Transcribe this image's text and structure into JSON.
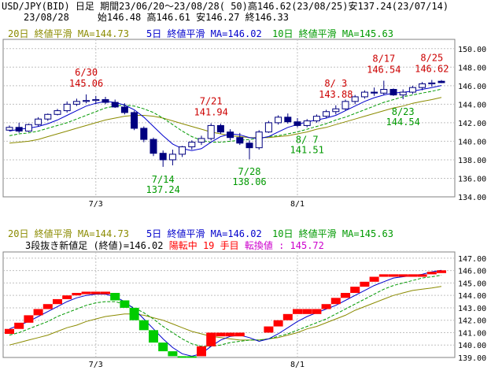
{
  "header": {
    "line1": "USD/JPY(BID) 日足 期間23/06/20～23/08/28( 50)高146.62(23/08/25)安137.24(23/07/14)",
    "line2": "23/08/28     始146.48 高146.61 安146.27 終146.33"
  },
  "colors": {
    "ma20": "#8b8b00",
    "ma5": "#0000cc",
    "ma10": "#009900",
    "up_candle": "#ffffff",
    "down_candle": "#000080",
    "candle_outline": "#000080",
    "break_up": "#ff0000",
    "break_down": "#00cc00",
    "annot_high": "#cc0000",
    "annot_low": "#009900",
    "grid": "#c0c0c0",
    "transition_value": "#cc00cc"
  },
  "chart_data": [
    {
      "type": "candlestick",
      "legend": {
        "ma20": "20日 終値平滑 MA=144.73",
        "ma5": "5日 終値平滑 MA=146.02",
        "ma10": "10日 終値平滑 MA=145.63"
      },
      "ylim": [
        134,
        151
      ],
      "yticks": [
        "150.00",
        "148.00",
        "146.00",
        "144.00",
        "142.00",
        "140.00",
        "138.00",
        "136.00",
        "134.00"
      ],
      "xtick_labels": [
        {
          "index": 9,
          "label": "7/3"
        },
        {
          "index": 30,
          "label": "8/1"
        }
      ],
      "candles": [
        [
          141.2,
          141.7,
          141.1,
          141.5
        ],
        [
          141.5,
          142.0,
          140.9,
          141.1
        ],
        [
          141.1,
          141.9,
          141.0,
          141.8
        ],
        [
          141.8,
          142.6,
          141.6,
          142.4
        ],
        [
          142.4,
          143.0,
          142.2,
          142.9
        ],
        [
          142.9,
          143.5,
          142.8,
          143.3
        ],
        [
          143.3,
          144.3,
          143.1,
          144.0
        ],
        [
          144.0,
          144.6,
          143.8,
          144.3
        ],
        [
          144.3,
          145.06,
          144.1,
          144.4
        ],
        [
          144.4,
          144.9,
          144.0,
          144.5
        ],
        [
          144.5,
          144.8,
          144.0,
          144.2
        ],
        [
          144.2,
          144.5,
          143.6,
          143.7
        ],
        [
          143.7,
          144.1,
          142.9,
          143.1
        ],
        [
          143.1,
          143.3,
          141.2,
          141.4
        ],
        [
          141.4,
          141.6,
          139.9,
          140.2
        ],
        [
          140.2,
          140.4,
          138.4,
          138.7
        ],
        [
          138.7,
          139.0,
          137.24,
          138.0
        ],
        [
          138.0,
          139.1,
          137.4,
          138.6
        ],
        [
          138.6,
          139.5,
          138.3,
          139.4
        ],
        [
          139.4,
          140.1,
          139.1,
          139.9
        ],
        [
          139.9,
          140.6,
          139.6,
          140.3
        ],
        [
          140.3,
          141.94,
          140.1,
          141.7
        ],
        [
          141.7,
          141.9,
          140.8,
          141.0
        ],
        [
          141.0,
          141.3,
          140.1,
          140.4
        ],
        [
          140.4,
          140.9,
          139.6,
          139.8
        ],
        [
          139.8,
          140.1,
          138.06,
          139.3
        ],
        [
          139.3,
          141.2,
          139.1,
          141.0
        ],
        [
          141.0,
          142.2,
          140.9,
          142.0
        ],
        [
          142.0,
          142.8,
          141.8,
          142.6
        ],
        [
          142.6,
          143.0,
          141.9,
          142.1
        ],
        [
          142.1,
          142.5,
          141.5,
          141.7
        ],
        [
          141.7,
          142.4,
          141.51,
          142.2
        ],
        [
          142.2,
          142.9,
          142.0,
          142.7
        ],
        [
          142.7,
          143.4,
          142.5,
          143.2
        ],
        [
          143.2,
          143.88,
          142.9,
          143.5
        ],
        [
          143.5,
          144.5,
          143.3,
          144.3
        ],
        [
          144.3,
          145.0,
          144.0,
          144.8
        ],
        [
          144.8,
          145.5,
          144.6,
          145.3
        ],
        [
          145.3,
          145.8,
          144.9,
          145.2
        ],
        [
          145.2,
          146.54,
          145.0,
          145.6
        ],
        [
          145.6,
          145.7,
          144.9,
          145.0
        ],
        [
          145.0,
          145.6,
          144.54,
          145.3
        ],
        [
          145.3,
          146.0,
          145.1,
          145.8
        ],
        [
          145.8,
          146.4,
          145.5,
          146.2
        ],
        [
          146.2,
          146.62,
          145.9,
          146.3
        ],
        [
          146.48,
          146.61,
          146.27,
          146.33
        ]
      ],
      "ma5": [
        141.1,
        141.3,
        141.4,
        141.6,
        141.9,
        142.3,
        142.8,
        143.3,
        143.8,
        144.1,
        144.3,
        144.2,
        143.9,
        143.4,
        142.6,
        141.6,
        140.6,
        139.7,
        139.2,
        139.0,
        139.2,
        139.9,
        140.5,
        140.8,
        140.7,
        140.4,
        140.3,
        140.5,
        141.0,
        141.5,
        141.8,
        142.1,
        142.3,
        142.5,
        142.8,
        143.3,
        143.8,
        144.3,
        144.7,
        145.0,
        145.2,
        145.3,
        145.4,
        145.6,
        145.8,
        146.02
      ],
      "ma10": [
        140.6,
        140.8,
        140.9,
        141.1,
        141.4,
        141.7,
        142.0,
        142.4,
        142.8,
        143.2,
        143.6,
        143.8,
        143.9,
        143.8,
        143.5,
        143.1,
        142.5,
        141.8,
        141.1,
        140.5,
        140.1,
        139.9,
        139.9,
        140.0,
        140.1,
        140.2,
        140.3,
        140.5,
        140.6,
        140.8,
        141.0,
        141.3,
        141.6,
        141.9,
        142.3,
        142.6,
        143.0,
        143.4,
        143.8,
        144.2,
        144.5,
        144.8,
        145.0,
        145.2,
        145.4,
        145.63
      ],
      "ma20": [
        139.8,
        139.9,
        140.0,
        140.2,
        140.5,
        140.8,
        141.1,
        141.4,
        141.7,
        142.0,
        142.3,
        142.5,
        142.7,
        142.8,
        142.8,
        142.7,
        142.5,
        142.2,
        141.9,
        141.6,
        141.3,
        141.0,
        140.8,
        140.6,
        140.5,
        140.4,
        140.4,
        140.4,
        140.5,
        140.6,
        140.8,
        141.0,
        141.3,
        141.5,
        141.8,
        142.1,
        142.4,
        142.7,
        143.0,
        143.3,
        143.6,
        143.8,
        144.1,
        144.3,
        144.5,
        144.73
      ],
      "annotations": [
        {
          "index": 8,
          "date": "6/30",
          "value": "145.06",
          "kind": "high"
        },
        {
          "index": 21,
          "date": "7/21",
          "value": "141.94",
          "kind": "high"
        },
        {
          "index": 34,
          "date": "8/ 3",
          "value": "143.88",
          "kind": "high"
        },
        {
          "index": 39,
          "date": "8/17",
          "value": "146.54",
          "kind": "high"
        },
        {
          "index": 44,
          "date": "8/25",
          "value": "146.62",
          "kind": "high"
        },
        {
          "index": 16,
          "date": "7/14",
          "value": "137.24",
          "kind": "low"
        },
        {
          "index": 25,
          "date": "7/28",
          "value": "138.06",
          "kind": "low"
        },
        {
          "index": 31,
          "date": "8/ 7",
          "value": "141.51",
          "kind": "low"
        },
        {
          "index": 41,
          "date": "8/23",
          "value": "144.54",
          "kind": "low"
        }
      ]
    },
    {
      "type": "three-line-break",
      "legend": {
        "ma20": "20日 終値平滑 MA=144.73",
        "ma5": "5日 終値平滑 MA=146.02",
        "ma10": "10日 終値平滑 MA=145.63"
      },
      "info_prefix": "3段抜き新値足 (終値)=146.02",
      "info_status": "陽転中",
      "info_count": "19 手目",
      "info_transition": "転換値 : 145.72",
      "ylim": [
        139,
        147.5
      ],
      "yticks": [
        "147.00",
        "146.00",
        "145.00",
        "144.00",
        "143.00",
        "142.00",
        "141.00",
        "140.00",
        "139.00"
      ],
      "xtick_labels": [
        {
          "index": 9,
          "label": "7/3"
        },
        {
          "index": 30,
          "label": "8/1"
        }
      ],
      "bricks": [
        {
          "i": 0,
          "lo": 140.9,
          "hi": 141.3,
          "up": true
        },
        {
          "i": 1,
          "lo": 141.3,
          "hi": 141.8,
          "up": true
        },
        {
          "i": 2,
          "lo": 141.8,
          "hi": 142.4,
          "up": true
        },
        {
          "i": 3,
          "lo": 142.4,
          "hi": 142.9,
          "up": true
        },
        {
          "i": 4,
          "lo": 142.9,
          "hi": 143.3,
          "up": true
        },
        {
          "i": 5,
          "lo": 143.3,
          "hi": 143.7,
          "up": true
        },
        {
          "i": 6,
          "lo": 143.7,
          "hi": 144.0,
          "up": true
        },
        {
          "i": 7,
          "lo": 144.0,
          "hi": 144.2,
          "up": true
        },
        {
          "i": 8,
          "lo": 144.1,
          "hi": 144.3,
          "up": true
        },
        {
          "i": 9,
          "lo": 144.1,
          "hi": 144.3,
          "up": true
        },
        {
          "i": 10,
          "lo": 144.1,
          "hi": 144.3,
          "up": true
        },
        {
          "i": 11,
          "lo": 143.6,
          "hi": 144.2,
          "up": false
        },
        {
          "i": 12,
          "lo": 143.0,
          "hi": 143.6,
          "up": false
        },
        {
          "i": 13,
          "lo": 142.0,
          "hi": 143.0,
          "up": false
        },
        {
          "i": 14,
          "lo": 141.2,
          "hi": 142.0,
          "up": false
        },
        {
          "i": 15,
          "lo": 140.2,
          "hi": 141.2,
          "up": false
        },
        {
          "i": 16,
          "lo": 139.5,
          "hi": 140.2,
          "up": false
        },
        {
          "i": 17,
          "lo": 139.1,
          "hi": 139.5,
          "up": false
        },
        {
          "i": 18,
          "lo": 138.9,
          "hi": 139.1,
          "up": false
        },
        {
          "i": 19,
          "lo": 138.9,
          "hi": 139.1,
          "up": false
        },
        {
          "i": 20,
          "lo": 139.1,
          "hi": 139.9,
          "up": true
        },
        {
          "i": 21,
          "lo": 139.9,
          "hi": 141.0,
          "up": true
        },
        {
          "i": 22,
          "lo": 140.7,
          "hi": 141.0,
          "up": true
        },
        {
          "i": 23,
          "lo": 140.7,
          "hi": 141.0,
          "up": true
        },
        {
          "i": 24,
          "lo": 140.7,
          "hi": 141.0,
          "up": true
        },
        {
          "i": 27,
          "lo": 141.0,
          "hi": 141.5,
          "up": true
        },
        {
          "i": 28,
          "lo": 141.5,
          "hi": 142.0,
          "up": true
        },
        {
          "i": 29,
          "lo": 142.0,
          "hi": 142.5,
          "up": true
        },
        {
          "i": 30,
          "lo": 142.5,
          "hi": 142.9,
          "up": true
        },
        {
          "i": 31,
          "lo": 142.5,
          "hi": 142.9,
          "up": true
        },
        {
          "i": 32,
          "lo": 142.5,
          "hi": 142.9,
          "up": true
        },
        {
          "i": 33,
          "lo": 142.9,
          "hi": 143.3,
          "up": true
        },
        {
          "i": 34,
          "lo": 143.3,
          "hi": 143.8,
          "up": true
        },
        {
          "i": 35,
          "lo": 143.8,
          "hi": 144.2,
          "up": true
        },
        {
          "i": 36,
          "lo": 144.2,
          "hi": 144.7,
          "up": true
        },
        {
          "i": 37,
          "lo": 144.7,
          "hi": 145.1,
          "up": true
        },
        {
          "i": 38,
          "lo": 145.1,
          "hi": 145.5,
          "up": true
        },
        {
          "i": 39,
          "lo": 145.5,
          "hi": 145.7,
          "up": true
        },
        {
          "i": 40,
          "lo": 145.5,
          "hi": 145.7,
          "up": true
        },
        {
          "i": 41,
          "lo": 145.5,
          "hi": 145.7,
          "up": true
        },
        {
          "i": 42,
          "lo": 145.5,
          "hi": 145.7,
          "up": true
        },
        {
          "i": 43,
          "lo": 145.5,
          "hi": 145.7,
          "up": true
        },
        {
          "i": 44,
          "lo": 145.7,
          "hi": 145.9,
          "up": true
        },
        {
          "i": 45,
          "lo": 145.8,
          "hi": 146.02,
          "up": true
        }
      ],
      "ma5": [
        141.3,
        141.6,
        141.9,
        142.3,
        142.7,
        143.1,
        143.5,
        143.8,
        144.0,
        144.1,
        144.1,
        143.9,
        143.5,
        142.9,
        142.1,
        141.3,
        140.5,
        139.8,
        139.3,
        139.1,
        139.3,
        139.9,
        140.4,
        140.7,
        140.8,
        140.6,
        140.3,
        140.5,
        140.9,
        141.4,
        141.9,
        142.3,
        142.6,
        142.9,
        143.2,
        143.6,
        144.0,
        144.4,
        144.8,
        145.1,
        145.4,
        145.5,
        145.6,
        145.7,
        145.9,
        146.02
      ],
      "ma10": [
        140.8,
        141.0,
        141.3,
        141.6,
        141.9,
        142.3,
        142.6,
        142.9,
        143.2,
        143.4,
        143.5,
        143.5,
        143.3,
        143.0,
        142.6,
        142.1,
        141.5,
        141.0,
        140.5,
        140.1,
        139.9,
        139.9,
        140.0,
        140.2,
        140.3,
        140.4,
        140.4,
        140.5,
        140.7,
        140.9,
        141.2,
        141.5,
        141.8,
        142.1,
        142.5,
        142.9,
        143.3,
        143.7,
        144.1,
        144.5,
        144.8,
        145.0,
        145.2,
        145.4,
        145.5,
        145.63
      ],
      "ma20": [
        140.0,
        140.2,
        140.4,
        140.6,
        140.8,
        141.1,
        141.4,
        141.6,
        141.9,
        142.1,
        142.3,
        142.4,
        142.5,
        142.5,
        142.4,
        142.2,
        142.0,
        141.7,
        141.4,
        141.1,
        140.9,
        140.7,
        140.6,
        140.5,
        140.4,
        140.4,
        140.4,
        140.5,
        140.6,
        140.8,
        141.0,
        141.3,
        141.5,
        141.8,
        142.1,
        142.4,
        142.8,
        143.1,
        143.4,
        143.7,
        144.0,
        144.2,
        144.4,
        144.5,
        144.6,
        144.73
      ]
    }
  ]
}
